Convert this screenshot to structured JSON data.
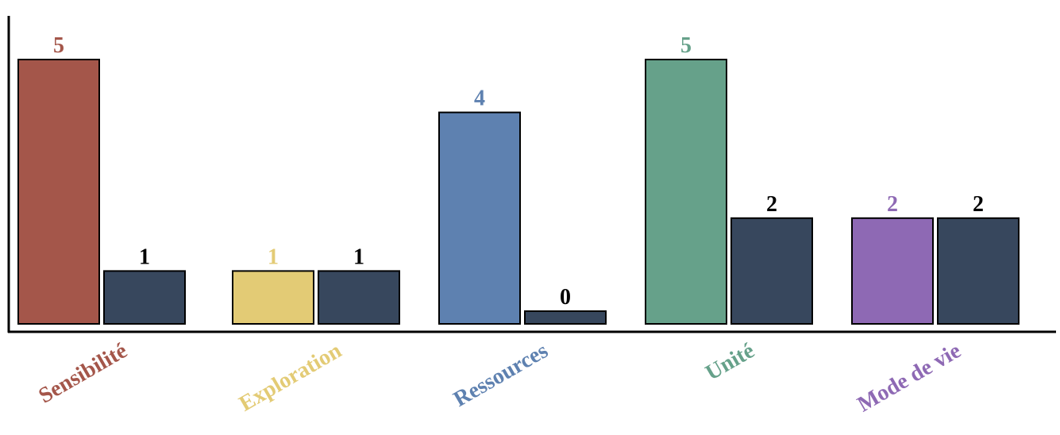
{
  "chart_data": {
    "type": "bar",
    "categories": [
      "Sensibilité",
      "Exploration",
      "Ressources",
      "Unité",
      "Mode de vie"
    ],
    "category_colors": [
      "#a4564a",
      "#e3cb75",
      "#5e81b0",
      "#66a18a",
      "#8e69b4"
    ],
    "series": [
      {
        "values": [
          5,
          1,
          4,
          5,
          2
        ],
        "color_by_category": true
      },
      {
        "values": [
          1,
          1,
          0,
          2,
          2
        ],
        "color": "#37475d",
        "label_color": "#000000"
      }
    ],
    "ylim": [
      0,
      5
    ],
    "grid": false,
    "legend": "none",
    "xlabel": "",
    "ylabel": ""
  }
}
